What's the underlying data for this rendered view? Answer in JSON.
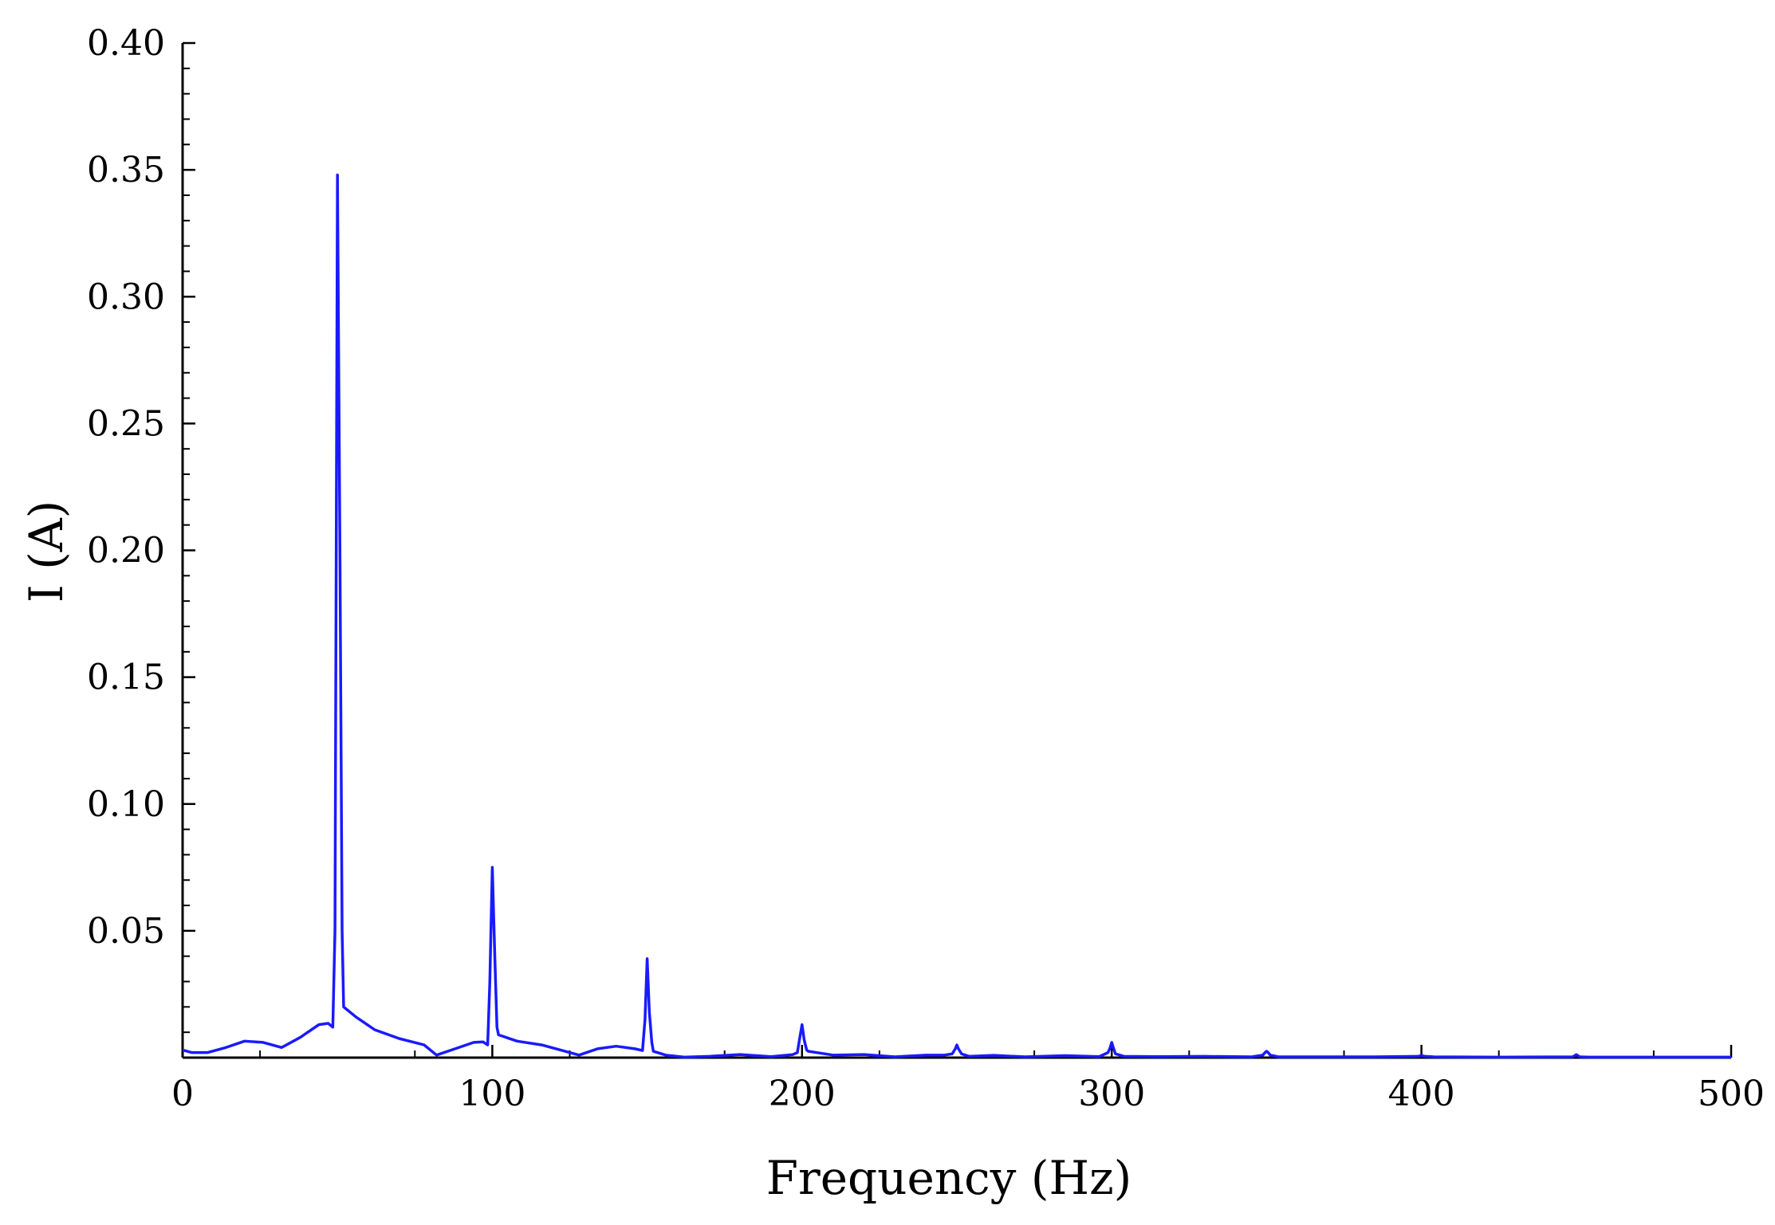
{
  "chart_data": {
    "type": "line",
    "title": "",
    "xlabel": "Frequency (Hz)",
    "ylabel": "I (A)",
    "xlim": [
      0,
      500
    ],
    "ylim": [
      0,
      0.4
    ],
    "grid": false,
    "x_ticks": [
      "0",
      "100",
      "200",
      "300",
      "400",
      "500"
    ],
    "y_ticks": [
      "0.05",
      "0.10",
      "0.15",
      "0.20",
      "0.25",
      "0.30",
      "0.35",
      "0.40"
    ],
    "line_color": "#1a1aff",
    "series": [
      {
        "x": [
          0,
          3,
          8,
          14,
          20,
          26,
          32,
          38,
          44,
          47,
          48.5,
          49.2,
          50,
          50.8,
          51.5,
          52,
          56,
          62,
          70,
          78,
          82,
          88,
          94,
          97,
          98.5,
          99.2,
          100,
          100.8,
          101.5,
          102,
          108,
          116,
          122,
          128,
          134,
          140,
          146,
          148.5,
          149.3,
          150,
          150.7,
          151.5,
          152,
          156,
          162,
          170,
          180,
          190,
          197,
          198.5,
          199.3,
          200,
          200.7,
          201.5,
          202,
          210,
          220,
          230,
          240,
          246,
          248.5,
          249.5,
          250,
          250.5,
          251.5,
          254,
          262,
          272,
          285,
          296,
          298.8,
          299.5,
          300,
          300.5,
          301.2,
          304,
          315,
          330,
          345,
          348.8,
          349.5,
          350,
          350.5,
          351.2,
          354,
          370,
          385,
          398.8,
          399.5,
          400,
          400.5,
          401.2,
          404,
          425,
          448.8,
          449.5,
          450,
          450.5,
          451.2,
          454,
          475,
          500
        ],
        "y": [
          0.003,
          0.002,
          0.002,
          0.004,
          0.0065,
          0.006,
          0.004,
          0.008,
          0.013,
          0.0135,
          0.012,
          0.05,
          0.348,
          0.2,
          0.05,
          0.02,
          0.016,
          0.011,
          0.0075,
          0.005,
          0.001,
          0.0035,
          0.006,
          0.0062,
          0.005,
          0.03,
          0.075,
          0.04,
          0.012,
          0.009,
          0.0065,
          0.005,
          0.003,
          0.001,
          0.0035,
          0.0045,
          0.0035,
          0.0028,
          0.015,
          0.039,
          0.018,
          0.006,
          0.0025,
          0.001,
          0.0002,
          0.0005,
          0.0012,
          0.0004,
          0.0012,
          0.002,
          0.008,
          0.013,
          0.007,
          0.003,
          0.0025,
          0.001,
          0.0012,
          0.0003,
          0.001,
          0.001,
          0.0015,
          0.0035,
          0.005,
          0.0035,
          0.0015,
          0.0005,
          0.0009,
          0.0003,
          0.0008,
          0.0004,
          0.002,
          0.004,
          0.006,
          0.004,
          0.0015,
          0.0005,
          0.0004,
          0.0005,
          0.0003,
          0.001,
          0.002,
          0.0025,
          0.002,
          0.001,
          0.0003,
          0.0003,
          0.0003,
          0.0005,
          0.0007,
          0.0009,
          0.0007,
          0.0005,
          0.0003,
          0.0002,
          0.0003,
          0.0008,
          0.0012,
          0.0008,
          0.0003,
          0.0002,
          0.0002,
          0.0002
        ]
      }
    ]
  }
}
